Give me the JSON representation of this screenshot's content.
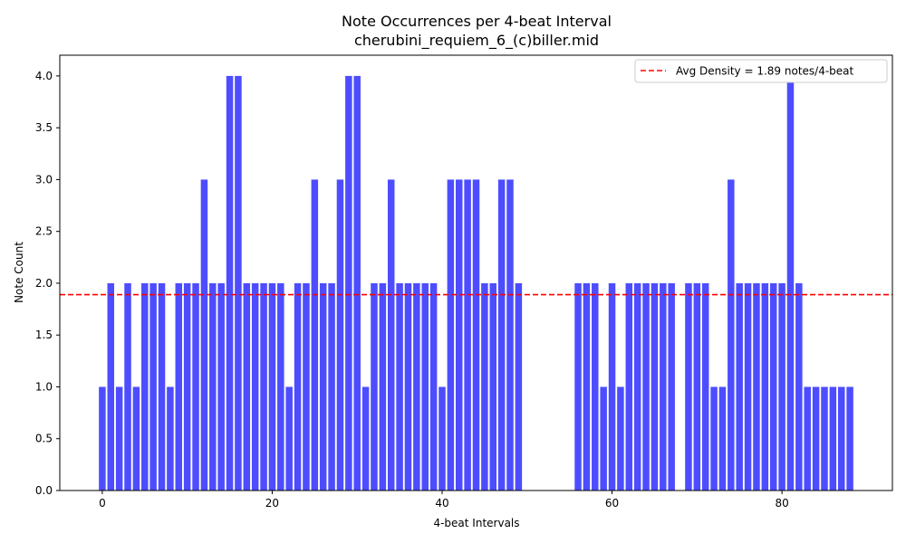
{
  "chart_data": {
    "type": "bar",
    "title": "Note Occurrences per 4-beat Interval",
    "subtitle": "cherubini_requiem_6_(c)biller.mid",
    "xlabel": "4-beat Intervals",
    "ylabel": "Note Count",
    "xlim": [
      -5,
      93
    ],
    "ylim": [
      0,
      4.2
    ],
    "x_ticks": [
      0,
      20,
      40,
      60,
      80
    ],
    "y_ticks": [
      0.0,
      0.5,
      1.0,
      1.5,
      2.0,
      2.5,
      3.0,
      3.5,
      4.0
    ],
    "bar_color": "#4d4dff",
    "grid": false,
    "legend_position": "top-right",
    "reference_line": {
      "label": "Avg Density = 1.89 notes/4-beat",
      "value": 1.89,
      "color": "#ff0000",
      "style": "dashed"
    },
    "x": [
      0,
      1,
      2,
      3,
      4,
      5,
      6,
      7,
      8,
      9,
      10,
      11,
      12,
      13,
      14,
      15,
      16,
      17,
      18,
      19,
      20,
      21,
      22,
      23,
      24,
      25,
      26,
      27,
      28,
      29,
      30,
      31,
      32,
      33,
      34,
      35,
      36,
      37,
      38,
      39,
      40,
      41,
      42,
      43,
      44,
      45,
      46,
      47,
      48,
      49,
      56,
      57,
      58,
      59,
      60,
      61,
      62,
      63,
      64,
      65,
      66,
      67,
      69,
      70,
      71,
      72,
      73,
      74,
      75,
      76,
      77,
      78,
      79,
      80,
      81,
      82,
      83,
      84,
      85,
      86,
      87,
      88
    ],
    "values": [
      1,
      2,
      1,
      2,
      1,
      2,
      2,
      2,
      1,
      2,
      2,
      2,
      3,
      2,
      2,
      4,
      4,
      2,
      2,
      2,
      2,
      2,
      1,
      2,
      2,
      3,
      2,
      2,
      3,
      4,
      4,
      1,
      2,
      2,
      3,
      2,
      2,
      2,
      2,
      2,
      1,
      3,
      3,
      3,
      3,
      2,
      2,
      3,
      3,
      2,
      2,
      2,
      2,
      1,
      2,
      1,
      2,
      2,
      2,
      2,
      2,
      2,
      2,
      2,
      2,
      1,
      1,
      3,
      2,
      2,
      2,
      2,
      2,
      2,
      4,
      2,
      1,
      1,
      1,
      1,
      1,
      1
    ]
  }
}
